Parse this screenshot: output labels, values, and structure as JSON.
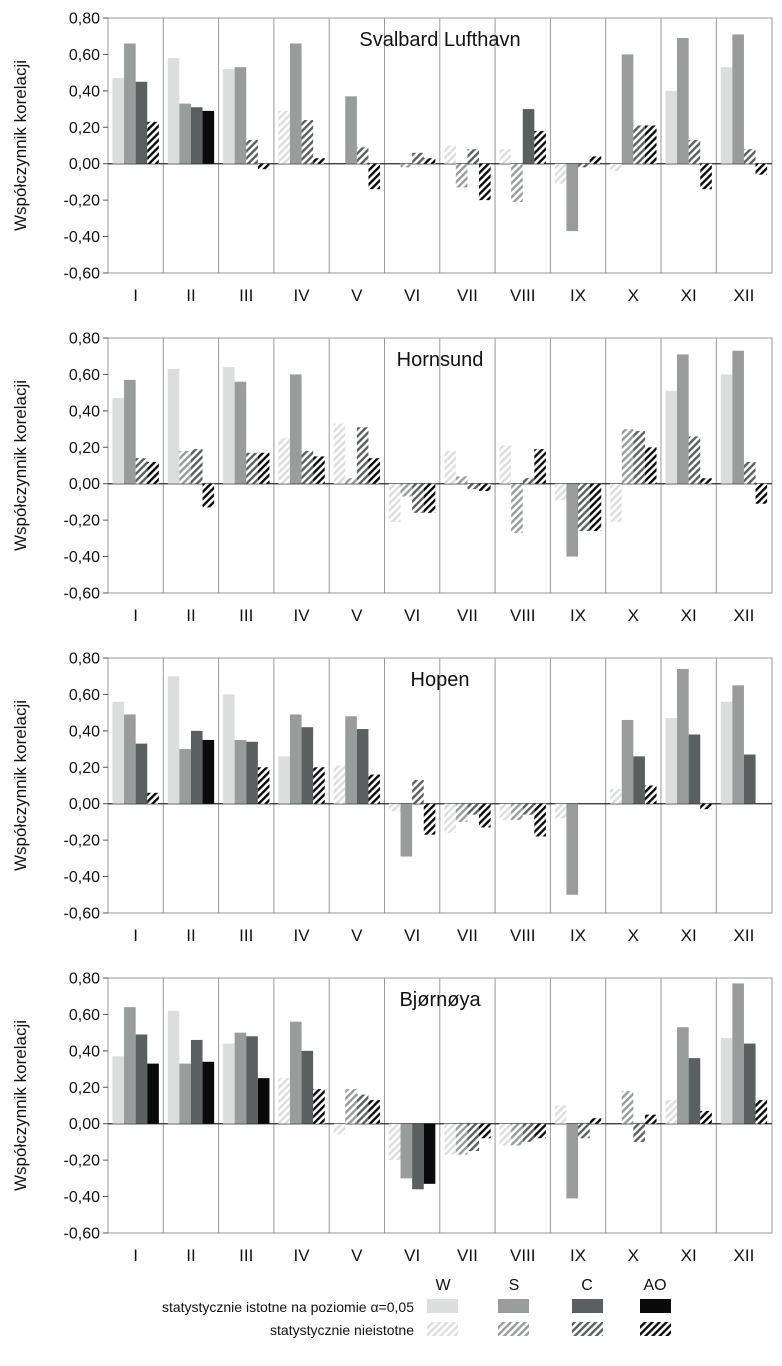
{
  "legend": {
    "series": [
      {
        "key": "W",
        "label": "W",
        "color": "#dcdedd"
      },
      {
        "key": "S",
        "label": "S",
        "color": "#989c9b"
      },
      {
        "key": "C",
        "label": "C",
        "color": "#59605f"
      },
      {
        "key": "AO",
        "label": "AO",
        "color": "#0a0a0a"
      }
    ],
    "significant_label": "statystycznie istotne na poziomie α=0,05",
    "insignificant_label": "statystycznie nieistotne"
  },
  "chart_data": [
    {
      "type": "bar",
      "title": "Svalbard Lufthavn",
      "ylabel": "Współczynnik korelacji",
      "ylim": [
        -0.6,
        0.8
      ],
      "yticks": [
        "0,80",
        "0,60",
        "0,40",
        "0,20",
        "0,00",
        "-0,20",
        "-0,40",
        "-0,60"
      ],
      "categories": [
        "I",
        "II",
        "III",
        "IV",
        "V",
        "VI",
        "VII",
        "VIII",
        "IX",
        "X",
        "XI",
        "XII"
      ],
      "grid": "vertical",
      "series": [
        {
          "name": "W",
          "values": [
            0.47,
            0.58,
            0.52,
            0.29,
            0.0,
            0.0,
            0.1,
            0.08,
            -0.11,
            -0.04,
            0.4,
            0.53
          ],
          "significant": [
            true,
            true,
            true,
            false,
            false,
            false,
            false,
            false,
            false,
            false,
            true,
            true
          ]
        },
        {
          "name": "S",
          "values": [
            0.66,
            0.33,
            0.53,
            0.66,
            0.37,
            -0.02,
            -0.13,
            -0.21,
            -0.37,
            0.6,
            0.69,
            0.71
          ],
          "significant": [
            true,
            true,
            true,
            true,
            true,
            false,
            false,
            false,
            true,
            true,
            true,
            true
          ]
        },
        {
          "name": "C",
          "values": [
            0.45,
            0.31,
            0.13,
            0.24,
            0.09,
            0.06,
            0.08,
            0.3,
            -0.02,
            0.21,
            0.13,
            0.08
          ],
          "significant": [
            true,
            true,
            false,
            false,
            false,
            false,
            false,
            true,
            false,
            false,
            false,
            false
          ]
        },
        {
          "name": "AO",
          "values": [
            0.23,
            0.29,
            -0.03,
            0.03,
            -0.14,
            0.03,
            -0.2,
            0.18,
            0.04,
            0.21,
            -0.14,
            -0.06
          ],
          "significant": [
            false,
            true,
            false,
            false,
            false,
            false,
            false,
            false,
            false,
            false,
            false,
            false
          ]
        }
      ]
    },
    {
      "type": "bar",
      "title": "Hornsund",
      "ylabel": "Współczynnik korelacji",
      "ylim": [
        -0.6,
        0.8
      ],
      "yticks": [
        "0,80",
        "0,60",
        "0,40",
        "0,20",
        "0,00",
        "-0,20",
        "-0,40",
        "-0,60"
      ],
      "categories": [
        "I",
        "II",
        "III",
        "IV",
        "V",
        "VI",
        "VII",
        "VIII",
        "IX",
        "X",
        "XI",
        "XII"
      ],
      "grid": "vertical",
      "series": [
        {
          "name": "W",
          "values": [
            0.47,
            0.63,
            0.64,
            0.25,
            0.33,
            -0.21,
            0.18,
            0.21,
            -0.09,
            -0.21,
            0.51,
            0.6
          ],
          "significant": [
            true,
            true,
            true,
            false,
            false,
            false,
            false,
            false,
            false,
            false,
            true,
            true
          ]
        },
        {
          "name": "S",
          "values": [
            0.57,
            0.18,
            0.56,
            0.6,
            0.03,
            -0.07,
            0.04,
            -0.27,
            -0.4,
            0.3,
            0.71,
            0.73
          ],
          "significant": [
            true,
            false,
            true,
            true,
            false,
            false,
            false,
            false,
            true,
            false,
            true,
            true
          ]
        },
        {
          "name": "C",
          "values": [
            0.14,
            0.19,
            0.17,
            0.18,
            0.31,
            -0.16,
            -0.03,
            0.03,
            -0.26,
            0.29,
            0.26,
            0.12
          ],
          "significant": [
            false,
            false,
            false,
            false,
            false,
            false,
            false,
            false,
            false,
            false,
            false,
            false
          ]
        },
        {
          "name": "AO",
          "values": [
            0.12,
            -0.13,
            0.17,
            0.15,
            0.14,
            -0.16,
            -0.04,
            0.19,
            -0.26,
            0.2,
            0.03,
            -0.11
          ],
          "significant": [
            false,
            false,
            false,
            false,
            false,
            false,
            false,
            false,
            false,
            false,
            false,
            false
          ]
        }
      ]
    },
    {
      "type": "bar",
      "title": "Hopen",
      "ylabel": "Współczynnik korelacji",
      "ylim": [
        -0.6,
        0.8
      ],
      "yticks": [
        "0,80",
        "0,60",
        "0,40",
        "0,20",
        "0,00",
        "-0,20",
        "-0,40",
        "-0,60"
      ],
      "categories": [
        "I",
        "II",
        "III",
        "IV",
        "V",
        "VI",
        "VII",
        "VIII",
        "IX",
        "X",
        "XI",
        "XII"
      ],
      "grid": "vertical",
      "series": [
        {
          "name": "W",
          "values": [
            0.56,
            0.7,
            0.6,
            0.26,
            0.21,
            -0.04,
            -0.16,
            -0.09,
            -0.08,
            0.08,
            0.47,
            0.56
          ],
          "significant": [
            true,
            true,
            true,
            true,
            false,
            false,
            false,
            false,
            false,
            false,
            true,
            true
          ]
        },
        {
          "name": "S",
          "values": [
            0.49,
            0.3,
            0.35,
            0.49,
            0.48,
            -0.29,
            -0.1,
            -0.09,
            -0.5,
            0.46,
            0.74,
            0.65
          ],
          "significant": [
            true,
            true,
            true,
            true,
            true,
            true,
            false,
            false,
            true,
            true,
            true,
            true
          ]
        },
        {
          "name": "C",
          "values": [
            0.33,
            0.4,
            0.34,
            0.42,
            0.41,
            0.13,
            -0.06,
            -0.06,
            0.0,
            0.26,
            0.38,
            0.27
          ],
          "significant": [
            true,
            true,
            true,
            true,
            true,
            false,
            false,
            false,
            false,
            true,
            true,
            true
          ]
        },
        {
          "name": "AO",
          "values": [
            0.06,
            0.35,
            0.2,
            0.2,
            0.16,
            -0.17,
            -0.13,
            -0.18,
            0.0,
            0.1,
            -0.03,
            0.0
          ],
          "significant": [
            false,
            true,
            false,
            false,
            false,
            false,
            false,
            false,
            false,
            false,
            false,
            false
          ]
        }
      ]
    },
    {
      "type": "bar",
      "title": "Bjørnøya",
      "ylabel": "Współczynnik korelacji",
      "ylim": [
        -0.6,
        0.8
      ],
      "yticks": [
        "0,80",
        "0,60",
        "0,40",
        "0,20",
        "0,00",
        "-0,20",
        "-0,40",
        "-0,60"
      ],
      "categories": [
        "I",
        "II",
        "III",
        "IV",
        "V",
        "VI",
        "VII",
        "VIII",
        "IX",
        "X",
        "XI",
        "XII"
      ],
      "grid": "vertical",
      "series": [
        {
          "name": "W",
          "values": [
            0.37,
            0.62,
            0.44,
            0.25,
            -0.06,
            -0.2,
            -0.17,
            -0.12,
            0.1,
            0.0,
            0.13,
            0.47
          ],
          "significant": [
            true,
            true,
            true,
            false,
            false,
            false,
            false,
            false,
            false,
            false,
            false,
            true
          ]
        },
        {
          "name": "S",
          "values": [
            0.64,
            0.33,
            0.5,
            0.56,
            0.19,
            -0.3,
            -0.17,
            -0.12,
            -0.41,
            0.18,
            0.53,
            0.77
          ],
          "significant": [
            true,
            true,
            true,
            true,
            false,
            true,
            false,
            false,
            true,
            false,
            true,
            true
          ]
        },
        {
          "name": "C",
          "values": [
            0.49,
            0.46,
            0.48,
            0.4,
            0.16,
            -0.36,
            -0.15,
            -0.1,
            -0.08,
            -0.1,
            0.36,
            0.44
          ],
          "significant": [
            true,
            true,
            true,
            true,
            false,
            true,
            false,
            false,
            false,
            false,
            true,
            true
          ]
        },
        {
          "name": "AO",
          "values": [
            0.33,
            0.34,
            0.25,
            0.19,
            0.13,
            -0.33,
            -0.08,
            -0.08,
            0.03,
            0.05,
            0.07,
            0.13
          ],
          "significant": [
            true,
            true,
            true,
            false,
            false,
            true,
            false,
            false,
            false,
            false,
            false,
            false
          ]
        }
      ]
    }
  ]
}
